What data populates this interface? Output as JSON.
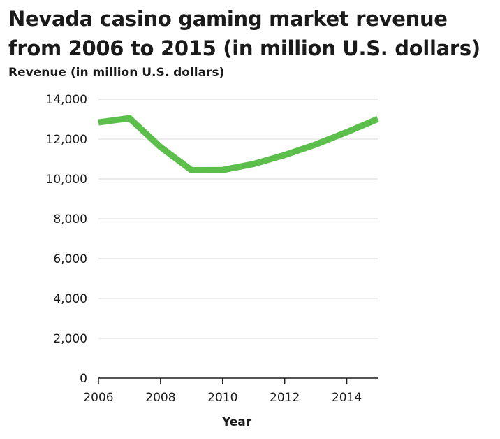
{
  "chart_data": {
    "type": "line",
    "title": "Nevada casino gaming market revenue from 2006 to 2015 (in million U.S. dollars)",
    "ylabel": "Revenue (in million U.S. dollars)",
    "xlabel": "Year",
    "xlim": [
      2006,
      2015
    ],
    "ylim": [
      0,
      14000
    ],
    "x_ticks": [
      2006,
      2008,
      2010,
      2012,
      2014
    ],
    "x_tick_labels": [
      "2006",
      "2008",
      "2010",
      "2012",
      "2014"
    ],
    "y_ticks": [
      0,
      2000,
      4000,
      6000,
      8000,
      10000,
      12000,
      14000
    ],
    "y_tick_labels": [
      "0",
      "2,000",
      "4,000",
      "6,000",
      "8,000",
      "10,000",
      "12,000",
      "14,000"
    ],
    "grid": "horizontal",
    "line_color": "#5cbf4c",
    "x": [
      2006,
      2007,
      2008,
      2009,
      2010,
      2011,
      2012,
      2013,
      2014,
      2015
    ],
    "series": [
      {
        "values": [
          12840,
          13050,
          11600,
          10440,
          10450,
          10750,
          11200,
          11730,
          12350,
          13010
        ]
      }
    ]
  }
}
